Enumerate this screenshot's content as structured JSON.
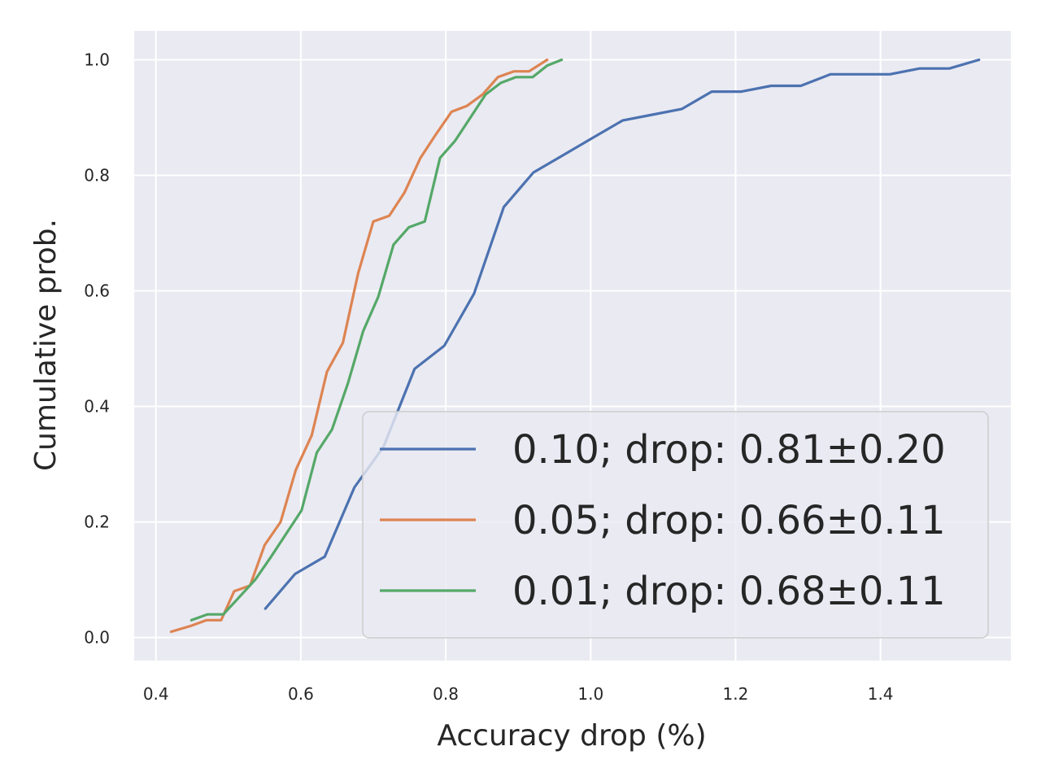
{
  "chart_data": {
    "type": "line",
    "title": "",
    "xlabel": "Accuracy drop (%)",
    "ylabel": "Cumulative prob.",
    "xlim": [
      0.37,
      1.58
    ],
    "ylim": [
      -0.04,
      1.05
    ],
    "xticks": [
      0.4,
      0.6,
      0.8,
      1.0,
      1.2,
      1.4
    ],
    "xtick_labels": [
      "0.4",
      "0.6",
      "0.8",
      "1.0",
      "1.2",
      "1.4"
    ],
    "yticks": [
      0.0,
      0.2,
      0.4,
      0.6,
      0.8,
      1.0
    ],
    "ytick_labels": [
      "0.0",
      "0.2",
      "0.4",
      "0.6",
      "0.8",
      "1.0"
    ],
    "grid": true,
    "legend_position": "lower-right",
    "colors": {
      "background": "#eaeaf2",
      "grid": "#ffffff",
      "text": "#262626"
    },
    "series": [
      {
        "name": "0.10; drop: 0.81±0.20",
        "color": "#4c72b0",
        "x": [
          0.551,
          0.592,
          0.633,
          0.674,
          0.714,
          0.757,
          0.798,
          0.839,
          0.88,
          0.921,
          0.962,
          1.003,
          1.044,
          1.085,
          1.126,
          1.167,
          1.208,
          1.249,
          1.29,
          1.331,
          1.372,
          1.413,
          1.454,
          1.495,
          1.536
        ],
        "y": [
          0.05,
          0.11,
          0.14,
          0.26,
          0.33,
          0.465,
          0.505,
          0.595,
          0.745,
          0.805,
          0.835,
          0.865,
          0.895,
          0.905,
          0.915,
          0.945,
          0.945,
          0.955,
          0.955,
          0.975,
          0.975,
          0.975,
          0.985,
          0.985,
          1.0
        ]
      },
      {
        "name": "0.05; drop: 0.66±0.11",
        "color": "#dd8452",
        "x": [
          0.421,
          0.448,
          0.47,
          0.49,
          0.508,
          0.53,
          0.55,
          0.572,
          0.593,
          0.615,
          0.636,
          0.658,
          0.679,
          0.7,
          0.722,
          0.743,
          0.765,
          0.786,
          0.808,
          0.829,
          0.851,
          0.872,
          0.894,
          0.915,
          0.94
        ],
        "y": [
          0.01,
          0.02,
          0.03,
          0.03,
          0.08,
          0.09,
          0.16,
          0.2,
          0.29,
          0.35,
          0.46,
          0.51,
          0.63,
          0.72,
          0.73,
          0.77,
          0.83,
          0.87,
          0.91,
          0.92,
          0.94,
          0.97,
          0.98,
          0.98,
          1.0
        ]
      },
      {
        "name": "0.01; drop: 0.68±0.11",
        "color": "#55a868",
        "x": [
          0.449,
          0.471,
          0.493,
          0.515,
          0.537,
          0.559,
          0.58,
          0.601,
          0.622,
          0.643,
          0.665,
          0.686,
          0.707,
          0.728,
          0.749,
          0.771,
          0.792,
          0.813,
          0.834,
          0.855,
          0.876,
          0.897,
          0.92,
          0.94,
          0.96
        ],
        "y": [
          0.03,
          0.04,
          0.04,
          0.07,
          0.1,
          0.14,
          0.18,
          0.22,
          0.32,
          0.36,
          0.44,
          0.53,
          0.59,
          0.68,
          0.71,
          0.72,
          0.83,
          0.86,
          0.9,
          0.94,
          0.96,
          0.97,
          0.97,
          0.99,
          1.0
        ]
      }
    ]
  }
}
